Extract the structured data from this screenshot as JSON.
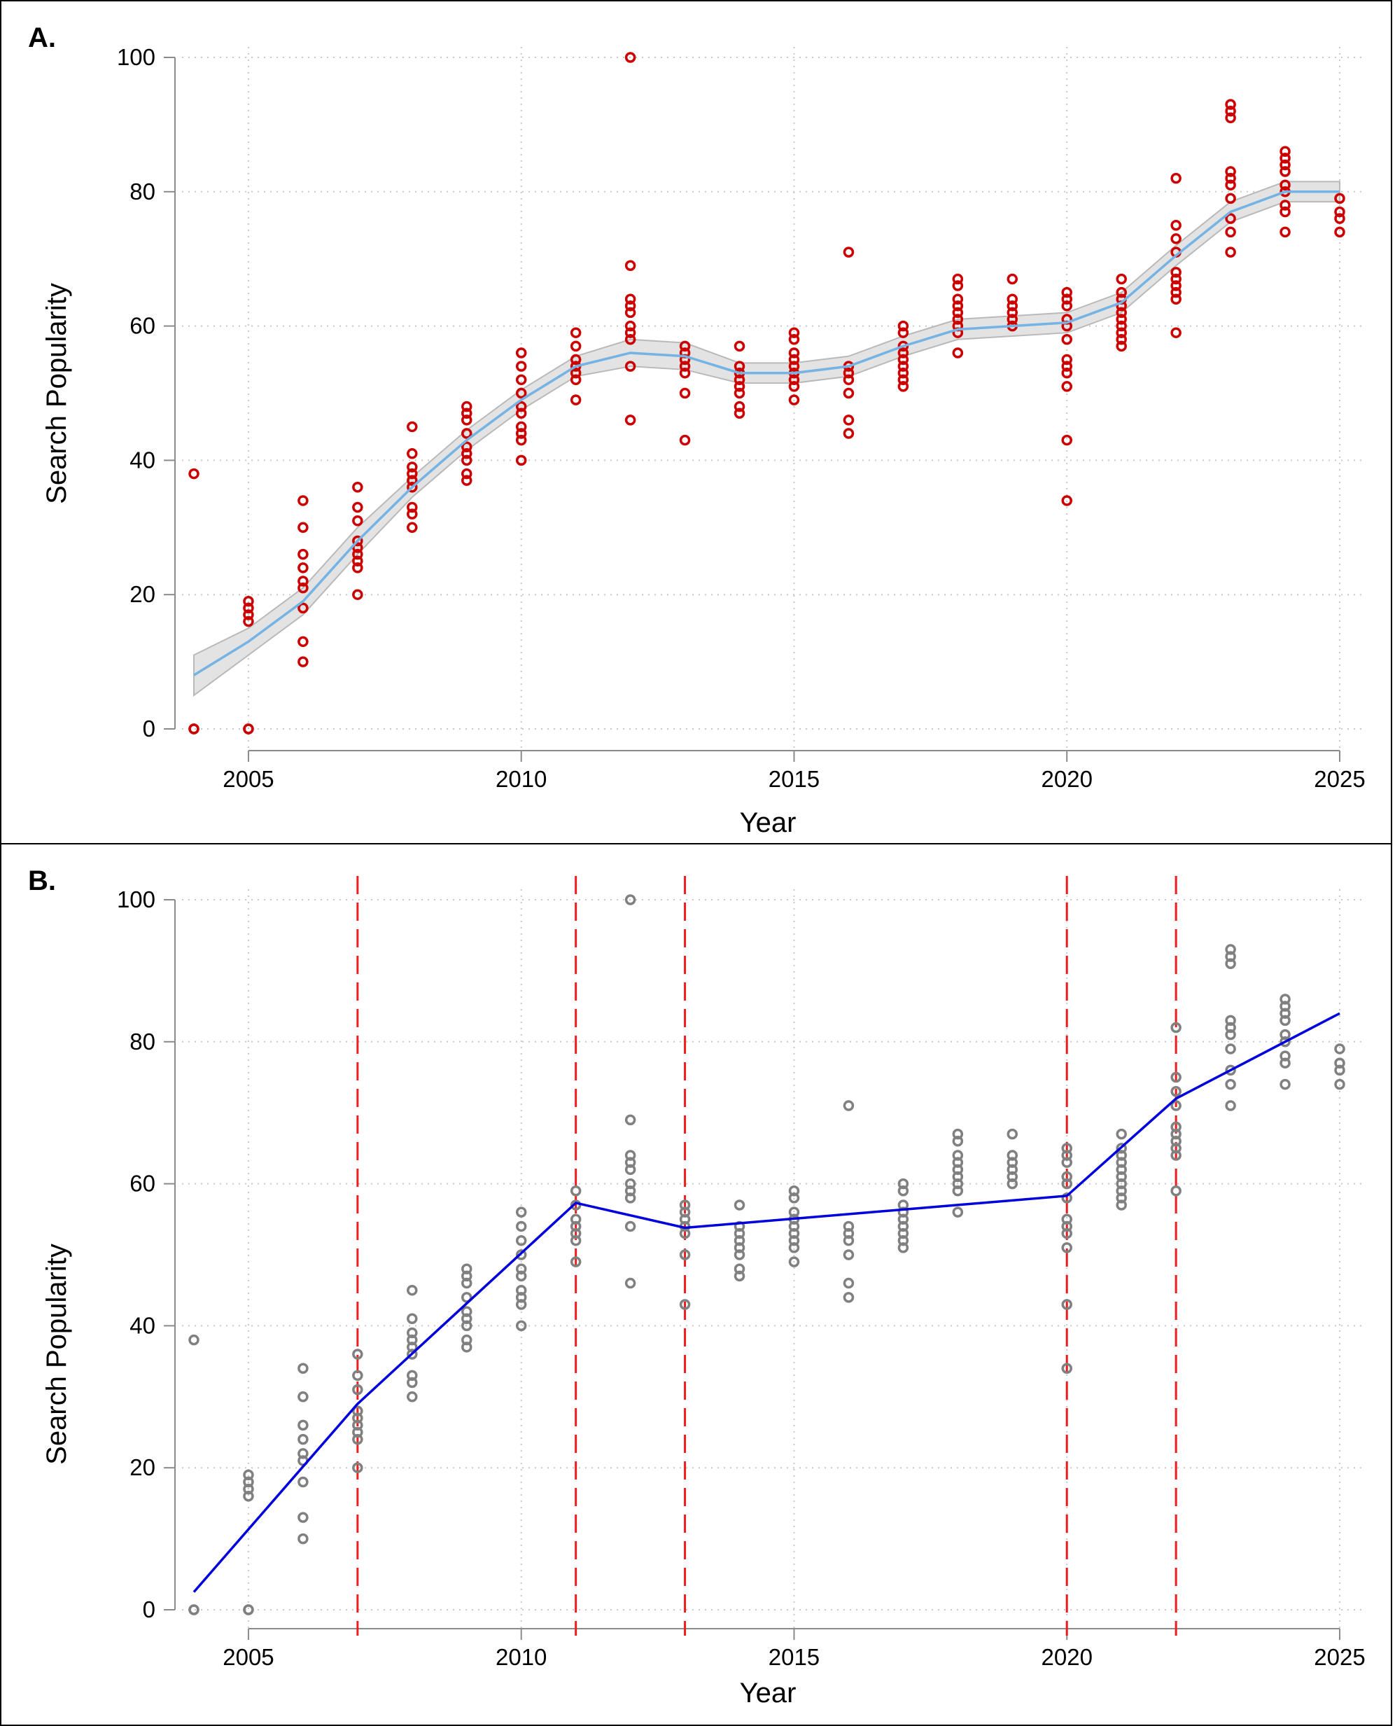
{
  "panels": [
    {
      "label": "A.",
      "xlabel": "Year",
      "ylabel": "Search Popularity"
    },
    {
      "label": "B.",
      "xlabel": "Year",
      "ylabel": "Search Popularity"
    }
  ],
  "chart_data": [
    {
      "type": "scatter",
      "panel": "A.",
      "xlabel": "Year",
      "ylabel": "Search Popularity",
      "xlim": [
        2004,
        2025
      ],
      "ylim": [
        0,
        100
      ],
      "xticks": [
        2005,
        2010,
        2015,
        2020,
        2025
      ],
      "yticks": [
        0,
        20,
        40,
        60,
        80,
        100
      ],
      "grid": true,
      "colors": {
        "points": "#cc0000",
        "smooth": "#74b3e3",
        "band": "#e3e3e3",
        "band_edge": "#b9b9b9",
        "grid": "#c8c8c8",
        "axis": "#8a8a8a"
      },
      "points": [
        [
          2004,
          [
            38,
            0,
            0
          ]
        ],
        [
          2005,
          [
            19,
            18,
            17,
            16,
            0,
            0
          ]
        ],
        [
          2006,
          [
            34,
            30,
            26,
            24,
            22,
            21,
            18,
            13,
            10
          ]
        ],
        [
          2007,
          [
            36,
            33,
            31,
            28,
            27,
            26,
            25,
            24,
            20
          ]
        ],
        [
          2008,
          [
            45,
            41,
            39,
            38,
            37,
            36,
            33,
            32,
            30
          ]
        ],
        [
          2009,
          [
            48,
            47,
            46,
            44,
            42,
            41,
            40,
            38,
            37
          ]
        ],
        [
          2010,
          [
            56,
            54,
            52,
            50,
            48,
            47,
            45,
            44,
            43,
            40
          ]
        ],
        [
          2011,
          [
            59,
            57,
            55,
            54,
            53,
            52,
            49
          ]
        ],
        [
          2012,
          [
            100,
            69,
            64,
            63,
            62,
            60,
            59,
            58,
            54,
            46
          ]
        ],
        [
          2013,
          [
            57,
            56,
            55,
            54,
            53,
            50,
            43
          ]
        ],
        [
          2014,
          [
            57,
            54,
            53,
            52,
            51,
            50,
            48,
            47
          ]
        ],
        [
          2015,
          [
            59,
            58,
            56,
            55,
            54,
            53,
            52,
            51,
            49
          ]
        ],
        [
          2016,
          [
            71,
            54,
            53,
            52,
            50,
            46,
            44
          ]
        ],
        [
          2017,
          [
            60,
            59,
            57,
            56,
            55,
            54,
            53,
            52,
            51
          ]
        ],
        [
          2018,
          [
            67,
            66,
            64,
            63,
            62,
            61,
            60,
            59,
            56
          ]
        ],
        [
          2019,
          [
            67,
            64,
            63,
            62,
            61,
            60
          ]
        ],
        [
          2020,
          [
            65,
            64,
            63,
            61,
            60,
            58,
            55,
            54,
            53,
            51,
            43,
            34
          ]
        ],
        [
          2021,
          [
            67,
            65,
            64,
            63,
            62,
            61,
            60,
            59,
            58,
            57
          ]
        ],
        [
          2022,
          [
            82,
            75,
            73,
            71,
            68,
            67,
            66,
            65,
            64,
            59
          ]
        ],
        [
          2023,
          [
            93,
            92,
            91,
            83,
            82,
            81,
            79,
            76,
            74,
            71
          ]
        ],
        [
          2024,
          [
            86,
            85,
            84,
            83,
            81,
            80,
            78,
            77,
            74
          ]
        ],
        [
          2025,
          [
            79,
            77,
            76,
            74
          ]
        ]
      ],
      "smooth": {
        "x": [
          2004,
          2005,
          2006,
          2007,
          2008,
          2009,
          2010,
          2011,
          2012,
          2013,
          2014,
          2015,
          2016,
          2017,
          2018,
          2019,
          2020,
          2021,
          2022,
          2023,
          2024,
          2025
        ],
        "y": [
          8,
          13,
          19,
          28,
          36,
          43,
          49,
          54,
          56,
          55.5,
          53,
          53,
          54,
          57,
          59.5,
          60,
          60.5,
          63.5,
          70.5,
          77,
          80,
          80
        ],
        "lower": [
          5,
          11,
          17,
          26,
          34.5,
          41.5,
          47.5,
          52.5,
          54,
          53.5,
          51.5,
          51.5,
          52.5,
          55.5,
          58,
          58.5,
          59,
          62,
          69,
          75.5,
          78.5,
          78.5
        ],
        "upper": [
          11,
          15,
          21,
          30,
          37.5,
          44.5,
          50.5,
          55.5,
          58,
          57.5,
          54.5,
          54.5,
          55.5,
          58.5,
          61,
          61.5,
          62,
          65,
          72,
          78.5,
          81.5,
          81.5
        ]
      }
    },
    {
      "type": "scatter",
      "panel": "B.",
      "xlabel": "Year",
      "ylabel": "Search Popularity",
      "xlim": [
        2004,
        2025
      ],
      "ylim": [
        0,
        100
      ],
      "xticks": [
        2005,
        2010,
        2015,
        2020,
        2025
      ],
      "yticks": [
        0,
        20,
        40,
        60,
        80,
        100
      ],
      "grid": true,
      "colors": {
        "points": "#808080",
        "fit": "#0000dd",
        "breaks": "#ee1c1c",
        "grid": "#c8c8c8",
        "axis": "#8a8a8a"
      },
      "breakpoints": [
        2007,
        2011,
        2013,
        2020,
        2022
      ],
      "fit_line": {
        "x": [
          2004,
          2007,
          2011,
          2013,
          2020,
          2022,
          2025
        ],
        "y": [
          2.5,
          29,
          57.3,
          53.8,
          58.3,
          72,
          84
        ]
      },
      "points": [
        [
          2004,
          [
            38,
            0,
            0
          ]
        ],
        [
          2005,
          [
            19,
            18,
            17,
            16,
            0,
            0
          ]
        ],
        [
          2006,
          [
            34,
            30,
            26,
            24,
            22,
            21,
            18,
            13,
            10
          ]
        ],
        [
          2007,
          [
            36,
            33,
            31,
            28,
            27,
            26,
            25,
            24,
            20
          ]
        ],
        [
          2008,
          [
            45,
            41,
            39,
            38,
            37,
            36,
            33,
            32,
            30
          ]
        ],
        [
          2009,
          [
            48,
            47,
            46,
            44,
            42,
            41,
            40,
            38,
            37
          ]
        ],
        [
          2010,
          [
            56,
            54,
            52,
            50,
            48,
            47,
            45,
            44,
            43,
            40
          ]
        ],
        [
          2011,
          [
            59,
            57,
            55,
            54,
            53,
            52,
            49
          ]
        ],
        [
          2012,
          [
            100,
            69,
            64,
            63,
            62,
            60,
            59,
            58,
            54,
            46
          ]
        ],
        [
          2013,
          [
            57,
            56,
            55,
            54,
            53,
            50,
            43
          ]
        ],
        [
          2014,
          [
            57,
            54,
            53,
            52,
            51,
            50,
            48,
            47
          ]
        ],
        [
          2015,
          [
            59,
            58,
            56,
            55,
            54,
            53,
            52,
            51,
            49
          ]
        ],
        [
          2016,
          [
            71,
            54,
            53,
            52,
            50,
            46,
            44
          ]
        ],
        [
          2017,
          [
            60,
            59,
            57,
            56,
            55,
            54,
            53,
            52,
            51
          ]
        ],
        [
          2018,
          [
            67,
            66,
            64,
            63,
            62,
            61,
            60,
            59,
            56
          ]
        ],
        [
          2019,
          [
            67,
            64,
            63,
            62,
            61,
            60
          ]
        ],
        [
          2020,
          [
            65,
            64,
            63,
            61,
            60,
            58,
            55,
            54,
            53,
            51,
            43,
            34
          ]
        ],
        [
          2021,
          [
            67,
            65,
            64,
            63,
            62,
            61,
            60,
            59,
            58,
            57
          ]
        ],
        [
          2022,
          [
            82,
            75,
            73,
            71,
            68,
            67,
            66,
            65,
            64,
            59
          ]
        ],
        [
          2023,
          [
            93,
            92,
            91,
            83,
            82,
            81,
            79,
            76,
            74,
            71
          ]
        ],
        [
          2024,
          [
            86,
            85,
            84,
            83,
            81,
            80,
            78,
            77,
            74
          ]
        ],
        [
          2025,
          [
            79,
            77,
            76,
            74
          ]
        ]
      ]
    }
  ]
}
